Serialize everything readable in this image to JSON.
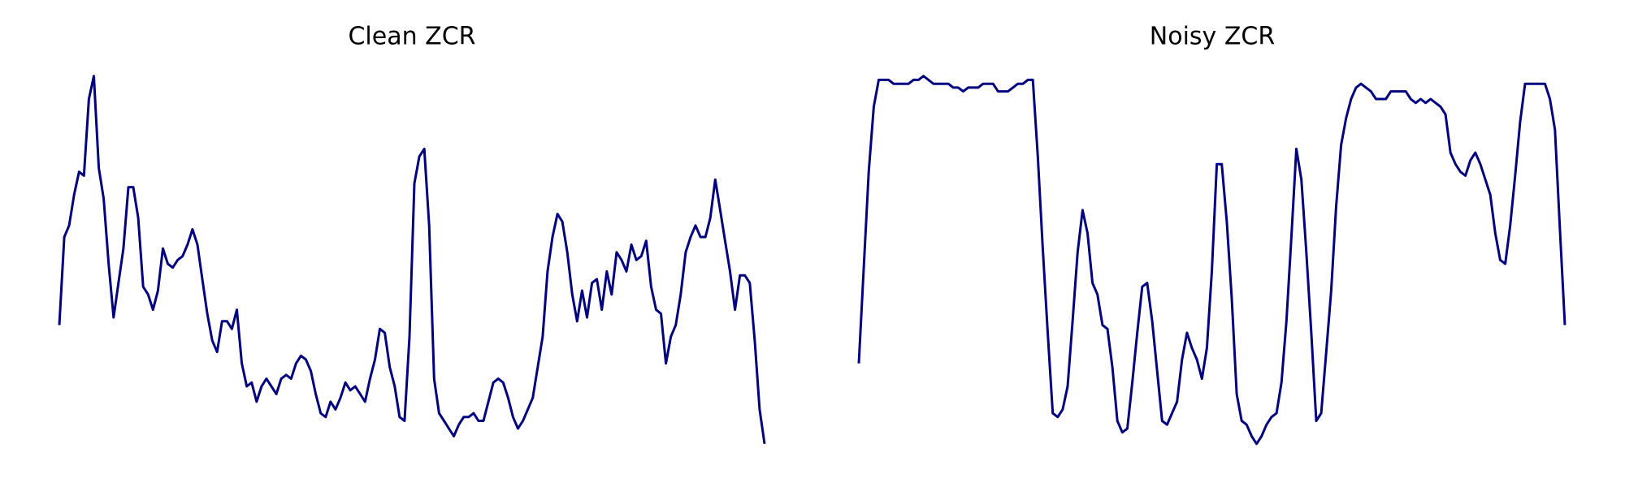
{
  "chart_data": [
    {
      "type": "line",
      "title": "Clean ZCR",
      "color": "#000080",
      "ylim": [
        0,
        100
      ],
      "values": [
        34,
        57,
        60,
        68,
        74,
        73,
        93,
        99,
        75,
        67,
        50,
        36,
        45,
        54,
        70,
        70,
        62,
        44,
        42,
        38,
        43,
        54,
        50,
        49,
        51,
        52,
        55,
        59,
        55,
        46,
        37,
        30,
        27,
        35,
        35,
        33,
        38,
        24,
        18,
        19,
        14,
        18,
        20,
        18,
        16,
        20,
        21,
        20,
        24,
        26,
        25,
        22,
        16,
        11,
        10,
        14,
        12,
        15,
        19,
        17,
        18,
        16,
        14,
        20,
        25,
        33,
        32,
        23,
        18,
        10,
        9,
        31,
        71,
        78,
        80,
        60,
        20,
        11,
        9,
        7,
        5,
        8,
        10,
        10,
        11,
        9,
        9,
        14,
        19,
        20,
        19,
        15,
        10,
        7,
        9,
        12,
        15,
        23,
        31,
        48,
        57,
        63,
        61,
        53,
        42,
        35,
        43,
        36,
        45,
        46,
        38,
        48,
        42,
        53,
        51,
        48,
        55,
        51,
        52,
        56,
        44,
        38,
        37,
        24,
        31,
        34,
        42,
        53,
        57,
        60,
        57,
        57,
        62,
        72,
        64,
        56,
        48,
        38,
        47,
        47,
        45,
        30,
        12,
        3
      ]
    },
    {
      "type": "line",
      "title": "Noisy ZCR",
      "color": "#000080",
      "ylim": [
        0,
        100
      ],
      "values": [
        24,
        49,
        74,
        91,
        98,
        98,
        98,
        97,
        97,
        97,
        97,
        98,
        98,
        99,
        98,
        97,
        97,
        97,
        97,
        96,
        96,
        95,
        96,
        96,
        96,
        97,
        97,
        97,
        95,
        95,
        95,
        96,
        97,
        97,
        98,
        98,
        78,
        54,
        32,
        11,
        10,
        12,
        18,
        35,
        53,
        64,
        58,
        45,
        42,
        34,
        33,
        23,
        9,
        6,
        7,
        19,
        32,
        44,
        45,
        35,
        22,
        9,
        8,
        11,
        14,
        25,
        32,
        28,
        25,
        20,
        28,
        48,
        76,
        76,
        61,
        41,
        16,
        9,
        8,
        5,
        3,
        5,
        8,
        10,
        11,
        19,
        35,
        57,
        80,
        72,
        53,
        32,
        9,
        11,
        27,
        43,
        65,
        81,
        88,
        93,
        96,
        97,
        96,
        95,
        93,
        93,
        93,
        95,
        95,
        95,
        95,
        93,
        92,
        93,
        92,
        93,
        92,
        91,
        89,
        79,
        76,
        74,
        73,
        77,
        79,
        76,
        72,
        68,
        58,
        51,
        50,
        60,
        73,
        87,
        97,
        97,
        97,
        97,
        97,
        93,
        85,
        59,
        34
      ]
    }
  ]
}
